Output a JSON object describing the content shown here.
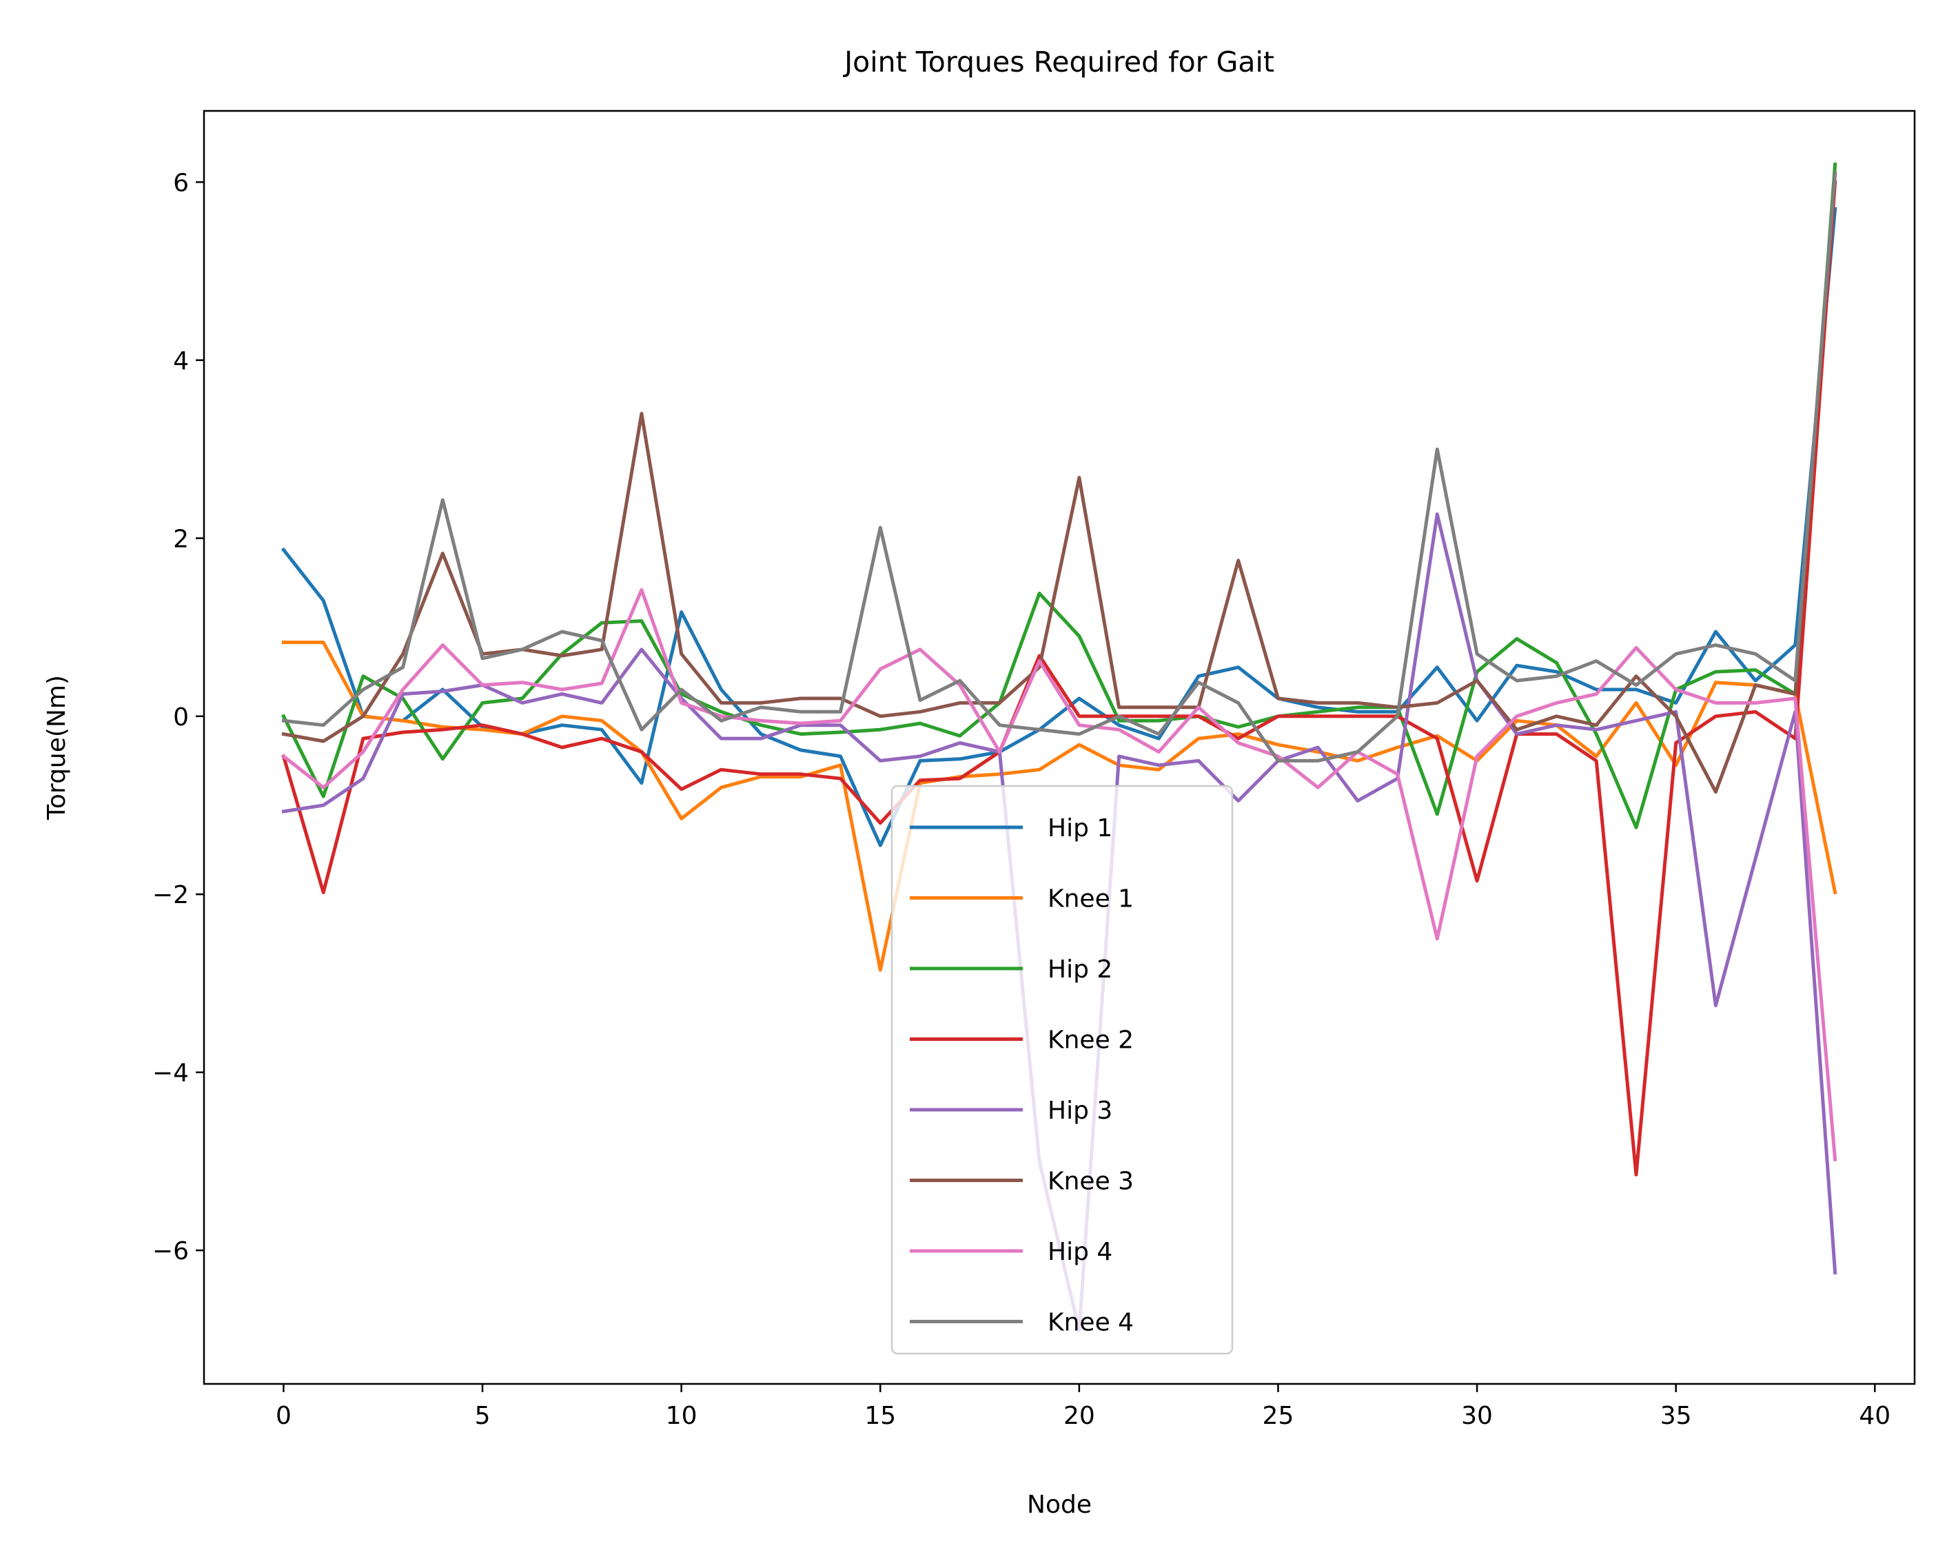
{
  "chart_data": {
    "type": "line",
    "title": "Joint Torques Required for Gait",
    "xlabel": "Node",
    "ylabel": "Torque(Nm)",
    "xlim": [
      -2,
      41
    ],
    "ylim": [
      -7.5,
      6.8
    ],
    "xticks": [
      0,
      5,
      10,
      15,
      20,
      25,
      30,
      35,
      40
    ],
    "xtick_labels": [
      "0",
      "5",
      "10",
      "15",
      "20",
      "25",
      "30",
      "35",
      "40"
    ],
    "yticks": [
      -6,
      -4,
      -2,
      0,
      2,
      4,
      6
    ],
    "ytick_labels": [
      "−6",
      "−4",
      "−2",
      "0",
      "2",
      "4",
      "6"
    ],
    "grid": false,
    "legend_position": "bottom-center",
    "x": [
      0,
      1,
      2,
      3,
      4,
      5,
      6,
      7,
      8,
      9,
      10,
      11,
      12,
      13,
      14,
      15,
      16,
      17,
      18,
      19,
      20,
      21,
      22,
      23,
      24,
      25,
      26,
      27,
      28,
      29,
      30,
      31,
      32,
      33,
      34,
      35,
      36,
      37,
      38,
      39
    ],
    "series": [
      {
        "name": "Hip 1",
        "color": "#1f77b4",
        "values": [
          1.87,
          1.3,
          0.0,
          -0.05,
          0.3,
          -0.12,
          -0.2,
          -0.1,
          -0.15,
          -0.75,
          1.17,
          0.3,
          -0.2,
          -0.38,
          -0.45,
          -1.45,
          -0.5,
          -0.48,
          -0.4,
          -0.15,
          0.2,
          -0.1,
          -0.25,
          0.45,
          0.55,
          0.2,
          0.1,
          0.05,
          0.05,
          0.55,
          -0.05,
          0.57,
          0.5,
          0.3,
          0.3,
          0.15,
          0.95,
          0.4,
          0.8,
          5.7
        ]
      },
      {
        "name": "Knee 1",
        "color": "#ff7f0e",
        "values": [
          0.83,
          0.83,
          0.0,
          -0.05,
          -0.12,
          -0.15,
          -0.2,
          0.0,
          -0.05,
          -0.4,
          -1.15,
          -0.8,
          -0.68,
          -0.68,
          -0.55,
          -2.85,
          -0.75,
          -0.68,
          -0.65,
          -0.6,
          -0.32,
          -0.55,
          -0.6,
          -0.25,
          -0.2,
          -0.32,
          -0.4,
          -0.5,
          -0.35,
          -0.22,
          -0.5,
          -0.05,
          -0.1,
          -0.45,
          0.15,
          -0.55,
          0.38,
          0.35,
          0.25,
          -1.98
        ]
      },
      {
        "name": "Hip 2",
        "color": "#2ca02c",
        "values": [
          0.0,
          -0.9,
          0.45,
          0.2,
          -0.48,
          0.15,
          0.2,
          0.7,
          1.05,
          1.07,
          0.25,
          0.05,
          -0.1,
          -0.2,
          -0.18,
          -0.15,
          -0.08,
          -0.22,
          0.15,
          1.38,
          0.9,
          -0.05,
          -0.05,
          0.0,
          -0.12,
          0.0,
          0.05,
          0.1,
          0.1,
          -1.1,
          0.5,
          0.87,
          0.6,
          -0.2,
          -1.25,
          0.3,
          0.5,
          0.52,
          0.25,
          6.2
        ]
      },
      {
        "name": "Knee 2",
        "color": "#d62728",
        "values": [
          -0.45,
          -1.98,
          -0.25,
          -0.18,
          -0.15,
          -0.1,
          -0.2,
          -0.35,
          -0.25,
          -0.4,
          -0.82,
          -0.6,
          -0.65,
          -0.65,
          -0.7,
          -1.2,
          -0.72,
          -0.7,
          -0.4,
          0.68,
          0.0,
          0.0,
          0.0,
          0.0,
          -0.25,
          0.0,
          0.0,
          0.0,
          0.0,
          -0.25,
          -1.85,
          -0.2,
          -0.2,
          -0.5,
          -5.15,
          -0.3,
          0.0,
          0.05,
          -0.25,
          6.0
        ]
      },
      {
        "name": "Hip 3",
        "color": "#9467bd",
        "values": [
          -1.07,
          -1.0,
          -0.7,
          0.25,
          0.28,
          0.35,
          0.15,
          0.25,
          0.15,
          0.75,
          0.2,
          -0.25,
          -0.25,
          -0.1,
          -0.1,
          -0.5,
          -0.45,
          -0.3,
          -0.4,
          -5.0,
          -6.9,
          -0.45,
          -0.55,
          -0.5,
          -0.95,
          -0.5,
          -0.35,
          -0.95,
          -0.7,
          2.27,
          0.4,
          -0.2,
          -0.1,
          -0.15,
          -0.05,
          0.05,
          -3.25,
          -1.6,
          0.05,
          -6.25
        ]
      },
      {
        "name": "Knee 3",
        "color": "#8c564b",
        "values": [
          -0.2,
          -0.28,
          0.0,
          0.7,
          1.83,
          0.7,
          0.75,
          0.68,
          0.75,
          3.4,
          0.7,
          0.15,
          0.15,
          0.2,
          0.2,
          0.0,
          0.05,
          0.15,
          0.15,
          0.55,
          2.68,
          0.1,
          0.1,
          0.1,
          1.75,
          0.2,
          0.15,
          0.15,
          0.1,
          0.15,
          0.4,
          -0.15,
          0.0,
          -0.1,
          0.45,
          0.0,
          -0.85,
          0.35,
          0.25,
          6.1
        ]
      },
      {
        "name": "Hip 4",
        "color": "#e377c2",
        "values": [
          -0.45,
          -0.8,
          -0.4,
          0.3,
          0.8,
          0.35,
          0.38,
          0.3,
          0.37,
          1.42,
          0.15,
          0.0,
          -0.05,
          -0.08,
          -0.05,
          0.53,
          0.75,
          0.35,
          -0.4,
          0.62,
          -0.1,
          -0.15,
          -0.4,
          0.1,
          -0.3,
          -0.45,
          -0.8,
          -0.4,
          -0.65,
          -2.5,
          -0.45,
          0.0,
          0.15,
          0.25,
          0.77,
          0.3,
          0.15,
          0.15,
          0.2,
          -4.98
        ]
      },
      {
        "name": "Knee 4",
        "color": "#7f7f7f",
        "values": [
          -0.05,
          -0.1,
          0.3,
          0.55,
          2.43,
          0.65,
          0.75,
          0.95,
          0.85,
          -0.15,
          0.3,
          -0.05,
          0.1,
          0.05,
          0.05,
          2.12,
          0.18,
          0.4,
          -0.1,
          -0.15,
          -0.2,
          0.0,
          -0.2,
          0.38,
          0.15,
          -0.5,
          -0.5,
          -0.4,
          0.0,
          3.0,
          0.7,
          0.4,
          0.45,
          0.62,
          0.35,
          0.7,
          0.8,
          0.7,
          0.4,
          6.1
        ]
      }
    ]
  }
}
